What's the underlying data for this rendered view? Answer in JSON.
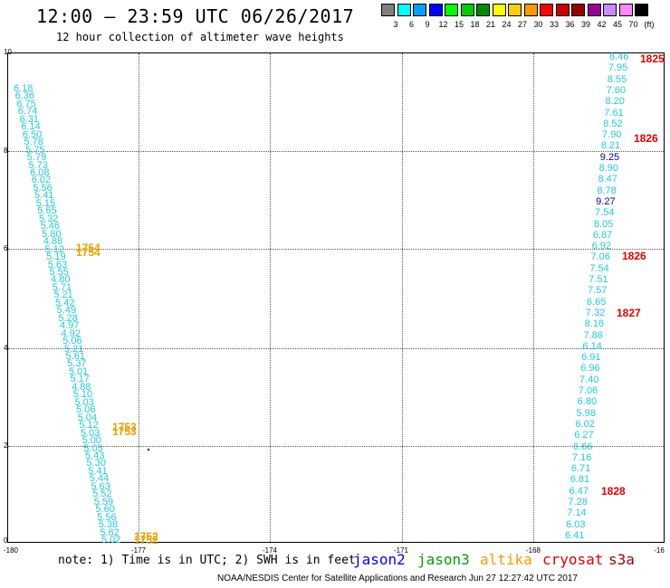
{
  "title": "12:00 — 23:59 UTC 06/26/2017",
  "subtitle": "12 hour collection of altimeter wave heights",
  "color_scale": {
    "colors": [
      "#808080",
      "#00ffff",
      "#00a0ff",
      "#0000ff",
      "#00ff00",
      "#00cc00",
      "#008c00",
      "#ffff00",
      "#ffcc00",
      "#ff9900",
      "#ff0000",
      "#cc0000",
      "#990000",
      "#990099",
      "#cc88ff",
      "#ff88ff",
      "#000000"
    ],
    "labels": [
      "3",
      "6",
      "9",
      "12",
      "15",
      "18",
      "21",
      "24",
      "27",
      "30",
      "33",
      "36",
      "39",
      "42",
      "45",
      "70",
      "(ft)"
    ]
  },
  "axes": {
    "lat_labels": [
      "10",
      "8",
      "6",
      "4",
      "2",
      "0"
    ],
    "lon_labels": [
      "-180",
      "-177",
      "-174",
      "-171",
      "-168",
      "-16"
    ]
  },
  "tracks": {
    "left": [
      "6.18",
      "6.36",
      "6.75",
      "6.74",
      "6.31",
      "6.14",
      "6.50",
      "5.78",
      "5.75",
      "5.79",
      "5.73",
      "6.08",
      "6.02",
      "5.56",
      "5.41",
      "5.15",
      "5.65",
      "5.32",
      "5.46",
      "5.80",
      "4.88",
      "5.12",
      "5.19",
      "5.63",
      "5.55",
      "4.80",
      "5.71",
      "5.21",
      "5.42",
      "5.49",
      "5.28",
      "4.97",
      "4.92",
      "5.06",
      "5.21",
      "5.61",
      "5.37",
      "5.01",
      "5.17",
      "4.88",
      "5.10",
      "5.03",
      "5.06",
      "5.04",
      "5.12",
      "5.03",
      "5.00",
      "5.05",
      "5.43",
      "5.30",
      "5.41",
      "5.44",
      "5.63",
      "5.52",
      "5.59",
      "5.60",
      "5.56",
      "5.38",
      "5.62",
      "5.02"
    ],
    "right": [
      {
        "v": "8.46",
        "dk": false
      },
      {
        "v": "7.95",
        "dk": false
      },
      {
        "v": "8.55",
        "dk": false
      },
      {
        "v": "7.60",
        "dk": false
      },
      {
        "v": "8.20",
        "dk": false
      },
      {
        "v": "7.61",
        "dk": false
      },
      {
        "v": "8.52",
        "dk": false
      },
      {
        "v": "7.90",
        "dk": false
      },
      {
        "v": "8.21",
        "dk": false
      },
      {
        "v": "9.25",
        "dk": true
      },
      {
        "v": "8.90",
        "dk": false
      },
      {
        "v": "8.47",
        "dk": false
      },
      {
        "v": "8.78",
        "dk": false
      },
      {
        "v": "9.27",
        "dk": true
      },
      {
        "v": "7.54",
        "dk": false
      },
      {
        "v": "8.05",
        "dk": false
      },
      {
        "v": "6.87",
        "dk": false
      },
      {
        "v": "6.92",
        "dk": false
      },
      {
        "v": "7.06",
        "dk": false
      },
      {
        "v": "7.54",
        "dk": false
      },
      {
        "v": "7.51",
        "dk": false
      },
      {
        "v": "7.57",
        "dk": false
      },
      {
        "v": "6.65",
        "dk": false
      },
      {
        "v": "7.32",
        "dk": false
      },
      {
        "v": "8.16",
        "dk": false
      },
      {
        "v": "7.86",
        "dk": false
      },
      {
        "v": "6.14",
        "dk": false
      },
      {
        "v": "6.91",
        "dk": false
      },
      {
        "v": "6.96",
        "dk": false
      },
      {
        "v": "7.40",
        "dk": false
      },
      {
        "v": "7.06",
        "dk": false
      },
      {
        "v": "6.80",
        "dk": false
      },
      {
        "v": "5.98",
        "dk": false
      },
      {
        "v": "6.02",
        "dk": false
      },
      {
        "v": "6.27",
        "dk": false
      },
      {
        "v": "6.66",
        "dk": false
      },
      {
        "v": "7.16",
        "dk": false
      },
      {
        "v": "6.71",
        "dk": false
      },
      {
        "v": "6.81",
        "dk": false
      },
      {
        "v": "6.47",
        "dk": false
      },
      {
        "v": "7.28",
        "dk": false
      },
      {
        "v": "7.14",
        "dk": false
      },
      {
        "v": "6.03",
        "dk": false
      },
      {
        "v": "6.41",
        "dk": false
      }
    ]
  },
  "time_labels": {
    "altika": [
      "1754",
      "1754",
      "1753",
      "1753",
      "1752",
      "1752"
    ],
    "cryosat": [
      "1825",
      "1826",
      "1826",
      "1827",
      "1828"
    ]
  },
  "note": "note: 1) Time is in UTC; 2) SWH is in feet",
  "legend": {
    "jason2": {
      "label": "jason2",
      "color": "#0000ff"
    },
    "jason3": {
      "label": "jason3",
      "color": "#00a000"
    },
    "altika": {
      "label": "altika",
      "color": "#ff9900"
    },
    "cryosat": {
      "label": "cryosat",
      "color": "#e00000"
    },
    "s3a": {
      "label": "s3a",
      "color": "#990000"
    }
  },
  "footer": "NOAA/NESDIS Center for Satellite Applications and Research   Jun 27 12:27:42 UTC 2017"
}
